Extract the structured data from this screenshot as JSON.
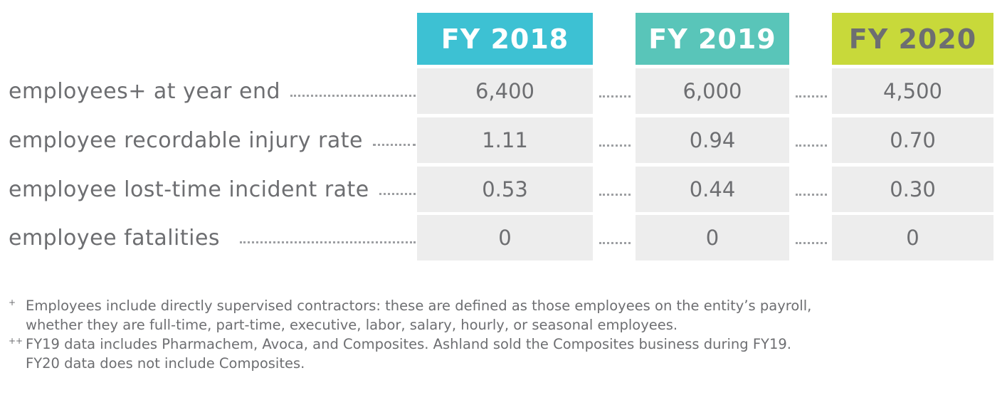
{
  "chart_data": {
    "type": "table",
    "columns": [
      {
        "label": "FY 2018",
        "color": "#3dc1d3",
        "text_color": "#ffffff"
      },
      {
        "label": "FY 2019",
        "color": "#59c5b9",
        "text_color": "#ffffff"
      },
      {
        "label": "FY 2020",
        "color": "#c8d93a",
        "text_color": "#6d6e71"
      }
    ],
    "rows": [
      {
        "label": "employees+ at year end",
        "values": [
          "6,400",
          "6,000",
          "4,500"
        ]
      },
      {
        "label": "employee recordable injury rate",
        "values": [
          "1.11",
          "0.94",
          "0.70"
        ]
      },
      {
        "label": "employee lost-time incident rate",
        "values": [
          "0.53",
          "0.44",
          "0.30"
        ]
      },
      {
        "label": "employee fatalities",
        "values": [
          "0",
          "0",
          "0"
        ]
      }
    ]
  },
  "footnotes": [
    {
      "mark": "+",
      "text": "Employees include directly supervised contractors:  these are defined as those employees on the entity’s payroll,\nwhether they are full-time, part-time, executive, labor, salary, hourly, or seasonal employees."
    },
    {
      "mark": "++",
      "text": "FY19 data includes Pharmachem, Avoca, and Composites. Ashland sold the Composites business during FY19.\nFY20 data does not include Composites."
    }
  ],
  "colors": {
    "cell_background": "#ededed",
    "text": "#6d6e71",
    "leader_dots": "#9d9fa2"
  }
}
